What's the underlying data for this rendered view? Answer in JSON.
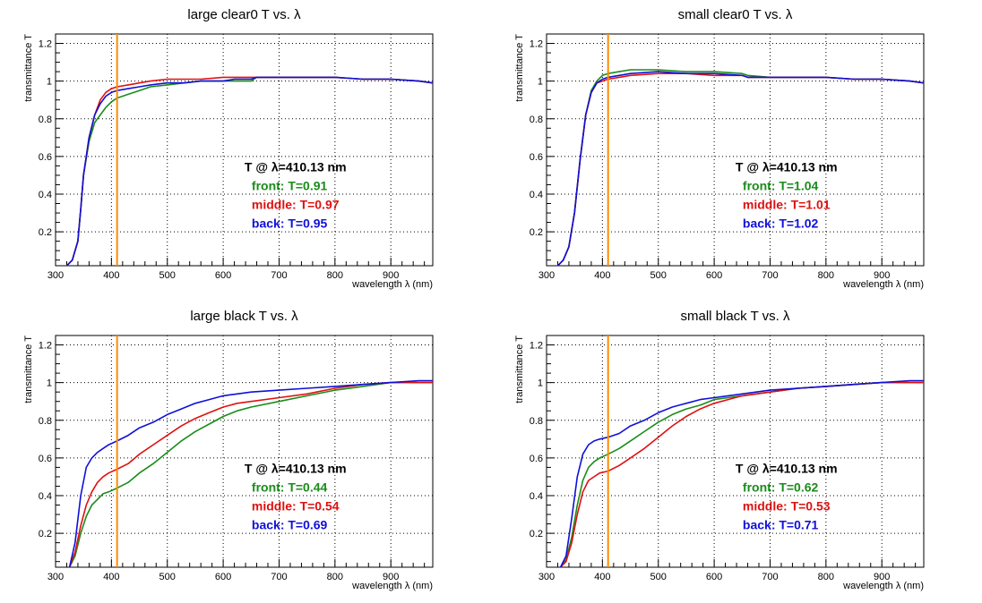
{
  "colors": {
    "front": "#1a8c1a",
    "middle": "#e01010",
    "back": "#1010d8",
    "marker": "#ff8c00",
    "grid": "#000000",
    "annotation_header": "#000000"
  },
  "chart_data": [
    {
      "type": "line",
      "title": "large clear0 T vs. λ",
      "xlabel": "wavelength λ (nm)",
      "ylabel": "transmittance T",
      "xlim": [
        300,
        975
      ],
      "ylim": [
        0.02,
        1.25
      ],
      "xticks": [
        300,
        400,
        500,
        600,
        700,
        800,
        900
      ],
      "yticks": [
        0.2,
        0.4,
        0.6,
        0.8,
        1,
        1.2
      ],
      "grid": true,
      "marker_line_x": 410.13,
      "annotation": {
        "header": "T @ λ=410.13 nm",
        "front": "front: T=0.91",
        "middle": "middle: T=0.97",
        "back": "back: T=0.95"
      },
      "series": [
        {
          "key": "front",
          "x": [
            320,
            330,
            340,
            345,
            350,
            360,
            370,
            380,
            390,
            400,
            410,
            430,
            450,
            470,
            500,
            530,
            560,
            600,
            620,
            650,
            660,
            700,
            750,
            800,
            850,
            900,
            950,
            975
          ],
          "y": [
            0.02,
            0.05,
            0.15,
            0.32,
            0.5,
            0.68,
            0.78,
            0.82,
            0.86,
            0.89,
            0.91,
            0.93,
            0.95,
            0.97,
            0.98,
            0.99,
            1.0,
            1.0,
            1.0,
            1.0,
            1.02,
            1.02,
            1.02,
            1.02,
            1.01,
            1.01,
            1.0,
            0.99
          ]
        },
        {
          "key": "middle",
          "x": [
            320,
            330,
            340,
            345,
            350,
            360,
            370,
            380,
            390,
            400,
            410,
            430,
            450,
            470,
            500,
            530,
            560,
            600,
            620,
            650,
            660,
            700,
            750,
            800,
            850,
            900,
            950,
            975
          ],
          "y": [
            0.02,
            0.05,
            0.15,
            0.32,
            0.5,
            0.7,
            0.82,
            0.9,
            0.94,
            0.96,
            0.97,
            0.98,
            0.99,
            1.0,
            1.01,
            1.01,
            1.01,
            1.02,
            1.02,
            1.02,
            1.02,
            1.02,
            1.02,
            1.02,
            1.01,
            1.01,
            1.0,
            0.99
          ]
        },
        {
          "key": "back",
          "x": [
            320,
            330,
            340,
            345,
            350,
            360,
            370,
            380,
            390,
            400,
            410,
            430,
            450,
            470,
            500,
            530,
            560,
            600,
            620,
            650,
            660,
            700,
            750,
            800,
            850,
            900,
            950,
            975
          ],
          "y": [
            0.02,
            0.05,
            0.15,
            0.32,
            0.5,
            0.7,
            0.82,
            0.88,
            0.92,
            0.94,
            0.95,
            0.96,
            0.97,
            0.98,
            0.99,
            0.99,
            1.0,
            1.0,
            1.01,
            1.01,
            1.02,
            1.02,
            1.02,
            1.02,
            1.01,
            1.01,
            1.0,
            0.99
          ]
        }
      ]
    },
    {
      "type": "line",
      "title": "small clear0 T vs. λ",
      "xlabel": "wavelength λ (nm)",
      "ylabel": "transmittance T",
      "xlim": [
        300,
        975
      ],
      "ylim": [
        0.02,
        1.25
      ],
      "xticks": [
        300,
        400,
        500,
        600,
        700,
        800,
        900
      ],
      "yticks": [
        0.2,
        0.4,
        0.6,
        0.8,
        1,
        1.2
      ],
      "grid": true,
      "marker_line_x": 410.13,
      "annotation": {
        "header": "T @ λ=410.13 nm",
        "front": "front: T=1.04",
        "middle": "middle: T=1.01",
        "back": "back: T=1.02"
      },
      "series": [
        {
          "key": "front",
          "x": [
            320,
            330,
            340,
            350,
            360,
            370,
            380,
            390,
            400,
            410,
            430,
            450,
            500,
            550,
            600,
            650,
            660,
            700,
            750,
            800,
            850,
            900,
            950,
            975
          ],
          "y": [
            0.02,
            0.05,
            0.12,
            0.3,
            0.58,
            0.82,
            0.95,
            1.0,
            1.03,
            1.04,
            1.05,
            1.06,
            1.06,
            1.05,
            1.05,
            1.04,
            1.03,
            1.02,
            1.02,
            1.02,
            1.01,
            1.01,
            1.0,
            0.99
          ]
        },
        {
          "key": "middle",
          "x": [
            320,
            330,
            340,
            350,
            360,
            370,
            380,
            390,
            400,
            410,
            430,
            450,
            500,
            550,
            600,
            650,
            660,
            700,
            750,
            800,
            850,
            900,
            950,
            975
          ],
          "y": [
            0.02,
            0.05,
            0.12,
            0.3,
            0.58,
            0.82,
            0.94,
            0.99,
            1.0,
            1.01,
            1.02,
            1.03,
            1.04,
            1.04,
            1.03,
            1.03,
            1.02,
            1.02,
            1.02,
            1.02,
            1.01,
            1.01,
            1.0,
            0.99
          ]
        },
        {
          "key": "back",
          "x": [
            320,
            330,
            340,
            350,
            360,
            370,
            380,
            390,
            400,
            410,
            430,
            450,
            500,
            550,
            600,
            650,
            660,
            700,
            750,
            800,
            850,
            900,
            950,
            975
          ],
          "y": [
            0.02,
            0.05,
            0.12,
            0.3,
            0.58,
            0.82,
            0.94,
            0.99,
            1.01,
            1.02,
            1.03,
            1.04,
            1.05,
            1.04,
            1.04,
            1.03,
            1.02,
            1.02,
            1.02,
            1.02,
            1.01,
            1.01,
            1.0,
            0.99
          ]
        }
      ]
    },
    {
      "type": "line",
      "title": "large black T vs. λ",
      "xlabel": "wavelength λ (nm)",
      "ylabel": "transmittance T",
      "xlim": [
        300,
        975
      ],
      "ylim": [
        0.02,
        1.25
      ],
      "xticks": [
        300,
        400,
        500,
        600,
        700,
        800,
        900
      ],
      "yticks": [
        0.2,
        0.4,
        0.6,
        0.8,
        1,
        1.2
      ],
      "grid": true,
      "marker_line_x": 410.13,
      "annotation": {
        "header": "T @ λ=410.13 nm",
        "front": "front: T=0.44",
        "middle": "middle: T=0.54",
        "back": "back: T=0.69"
      },
      "series": [
        {
          "key": "front",
          "x": [
            325,
            335,
            345,
            355,
            365,
            375,
            385,
            395,
            410,
            430,
            450,
            475,
            500,
            525,
            550,
            575,
            600,
            625,
            650,
            700,
            750,
            800,
            850,
            900,
            950,
            975
          ],
          "y": [
            0.02,
            0.08,
            0.2,
            0.29,
            0.35,
            0.38,
            0.41,
            0.42,
            0.44,
            0.47,
            0.52,
            0.57,
            0.63,
            0.69,
            0.74,
            0.78,
            0.82,
            0.85,
            0.87,
            0.9,
            0.93,
            0.96,
            0.98,
            1.0,
            1.0,
            1.0
          ]
        },
        {
          "key": "middle",
          "x": [
            325,
            335,
            345,
            355,
            365,
            375,
            385,
            395,
            410,
            430,
            450,
            475,
            500,
            525,
            550,
            575,
            600,
            625,
            650,
            700,
            750,
            800,
            850,
            900,
            950,
            975
          ],
          "y": [
            0.02,
            0.1,
            0.24,
            0.35,
            0.42,
            0.47,
            0.5,
            0.52,
            0.54,
            0.57,
            0.62,
            0.67,
            0.72,
            0.77,
            0.81,
            0.84,
            0.87,
            0.89,
            0.9,
            0.92,
            0.94,
            0.97,
            0.99,
            1.0,
            1.0,
            1.0
          ]
        },
        {
          "key": "back",
          "x": [
            325,
            335,
            345,
            355,
            365,
            375,
            385,
            395,
            410,
            430,
            450,
            475,
            500,
            525,
            550,
            575,
            600,
            625,
            650,
            700,
            750,
            800,
            850,
            900,
            950,
            975
          ],
          "y": [
            0.02,
            0.15,
            0.4,
            0.55,
            0.6,
            0.63,
            0.65,
            0.67,
            0.69,
            0.72,
            0.76,
            0.79,
            0.83,
            0.86,
            0.89,
            0.91,
            0.93,
            0.94,
            0.95,
            0.96,
            0.97,
            0.98,
            0.99,
            1.0,
            1.01,
            1.01
          ]
        }
      ]
    },
    {
      "type": "line",
      "title": "small black T vs. λ",
      "xlabel": "wavelength λ (nm)",
      "ylabel": "transmittance T",
      "xlim": [
        300,
        975
      ],
      "ylim": [
        0.02,
        1.25
      ],
      "xticks": [
        300,
        400,
        500,
        600,
        700,
        800,
        900
      ],
      "yticks": [
        0.2,
        0.4,
        0.6,
        0.8,
        1,
        1.2
      ],
      "grid": true,
      "marker_line_x": 410.13,
      "annotation": {
        "header": "T @ λ=410.13 nm",
        "front": "front: T=0.62",
        "middle": "middle: T=0.53",
        "back": "back: T=0.71"
      },
      "series": [
        {
          "key": "front",
          "x": [
            325,
            335,
            345,
            355,
            365,
            375,
            385,
            395,
            410,
            430,
            450,
            475,
            500,
            525,
            550,
            575,
            600,
            625,
            650,
            700,
            750,
            800,
            850,
            900,
            950,
            975
          ],
          "y": [
            0.02,
            0.06,
            0.18,
            0.35,
            0.48,
            0.55,
            0.58,
            0.6,
            0.62,
            0.65,
            0.69,
            0.74,
            0.79,
            0.83,
            0.86,
            0.88,
            0.91,
            0.92,
            0.93,
            0.95,
            0.97,
            0.98,
            0.99,
            1.0,
            1.0,
            1.0
          ]
        },
        {
          "key": "middle",
          "x": [
            325,
            335,
            345,
            355,
            365,
            375,
            385,
            395,
            410,
            430,
            450,
            475,
            500,
            525,
            550,
            575,
            600,
            625,
            650,
            700,
            750,
            800,
            850,
            900,
            950,
            975
          ],
          "y": [
            0.02,
            0.05,
            0.15,
            0.3,
            0.42,
            0.48,
            0.5,
            0.52,
            0.53,
            0.56,
            0.6,
            0.65,
            0.71,
            0.77,
            0.82,
            0.86,
            0.89,
            0.91,
            0.93,
            0.95,
            0.97,
            0.98,
            0.99,
            1.0,
            1.0,
            1.0
          ]
        },
        {
          "key": "back",
          "x": [
            325,
            335,
            345,
            355,
            365,
            375,
            385,
            395,
            410,
            430,
            450,
            475,
            500,
            525,
            550,
            575,
            600,
            625,
            650,
            700,
            750,
            800,
            850,
            900,
            950,
            975
          ],
          "y": [
            0.02,
            0.08,
            0.28,
            0.5,
            0.62,
            0.67,
            0.69,
            0.7,
            0.71,
            0.73,
            0.77,
            0.8,
            0.84,
            0.87,
            0.89,
            0.91,
            0.92,
            0.93,
            0.94,
            0.96,
            0.97,
            0.98,
            0.99,
            1.0,
            1.01,
            1.01
          ]
        }
      ]
    }
  ]
}
